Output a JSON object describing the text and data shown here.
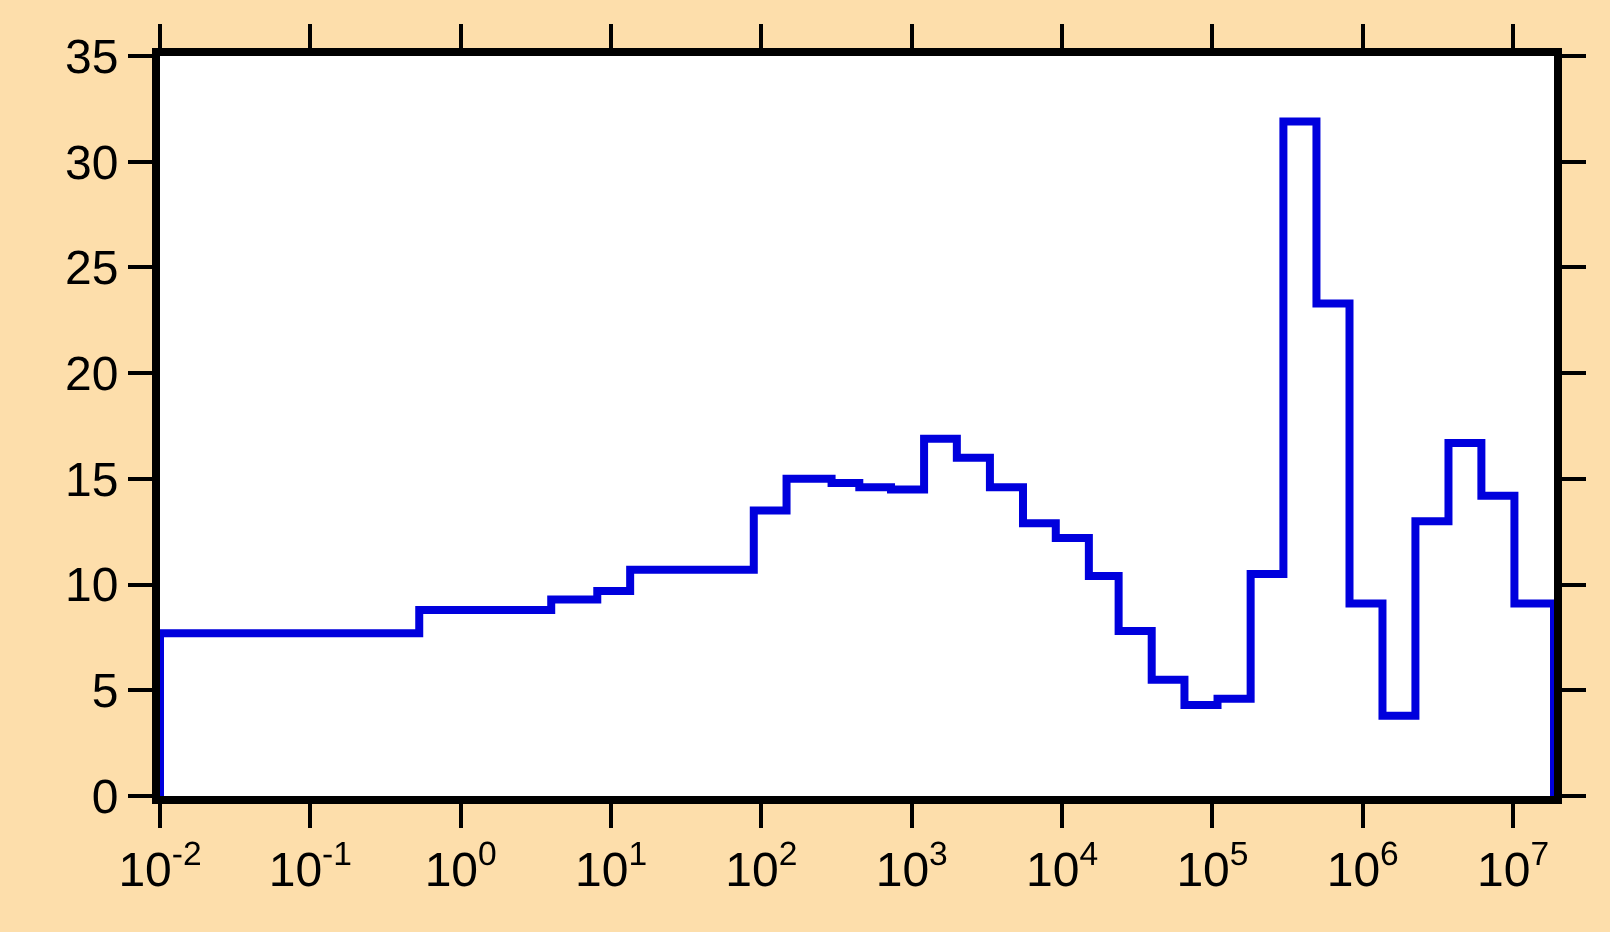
{
  "chart_data": {
    "type": "histogram",
    "bins": [
      0.01,
      0.53,
      4.0,
      8.1,
      13.4,
      89,
      147,
      293,
      448,
      728,
      1208,
      1995,
      3311,
      5495,
      9080,
      15070,
      23770,
      39450,
      65160,
      108100,
      179500,
      296500,
      492000,
      816000,
      1352000,
      2239000,
      3715000,
      6150000,
      10200000,
      18700000
    ],
    "values": [
      7.7,
      8.8,
      9.3,
      9.7,
      10.7,
      13.5,
      15.0,
      14.8,
      14.6,
      14.5,
      16.9,
      16.0,
      14.6,
      12.9,
      12.2,
      10.4,
      7.8,
      5.5,
      4.3,
      4.6,
      10.5,
      31.9,
      23.3,
      9.1,
      3.8,
      13.0,
      16.7,
      14.2,
      9.1
    ],
    "color": "#0000dd",
    "log": "x",
    "xlim": [
      0.01,
      18700000
    ],
    "xticks": [
      {
        "value": 0.01,
        "label": "10$^{-2}$"
      },
      {
        "value": 0.1,
        "label": "10$^{-1}$"
      },
      {
        "value": 1,
        "label": "10$^{0}$"
      },
      {
        "value": 10,
        "label": "10$^{1}$"
      },
      {
        "value": 100,
        "label": "10$^{2}$"
      },
      {
        "value": 1000,
        "label": "10$^{3}$"
      },
      {
        "value": 10000,
        "label": "10$^{4}$"
      },
      {
        "value": 100000,
        "label": "10$^{5}$"
      },
      {
        "value": 1000000,
        "label": "10$^{6}$"
      },
      {
        "value": 10000000,
        "label": "10$^{7}$"
      }
    ],
    "ylim": [
      0,
      35
    ],
    "yticks": [
      0,
      5,
      10,
      15,
      20,
      25,
      30,
      35
    ]
  }
}
